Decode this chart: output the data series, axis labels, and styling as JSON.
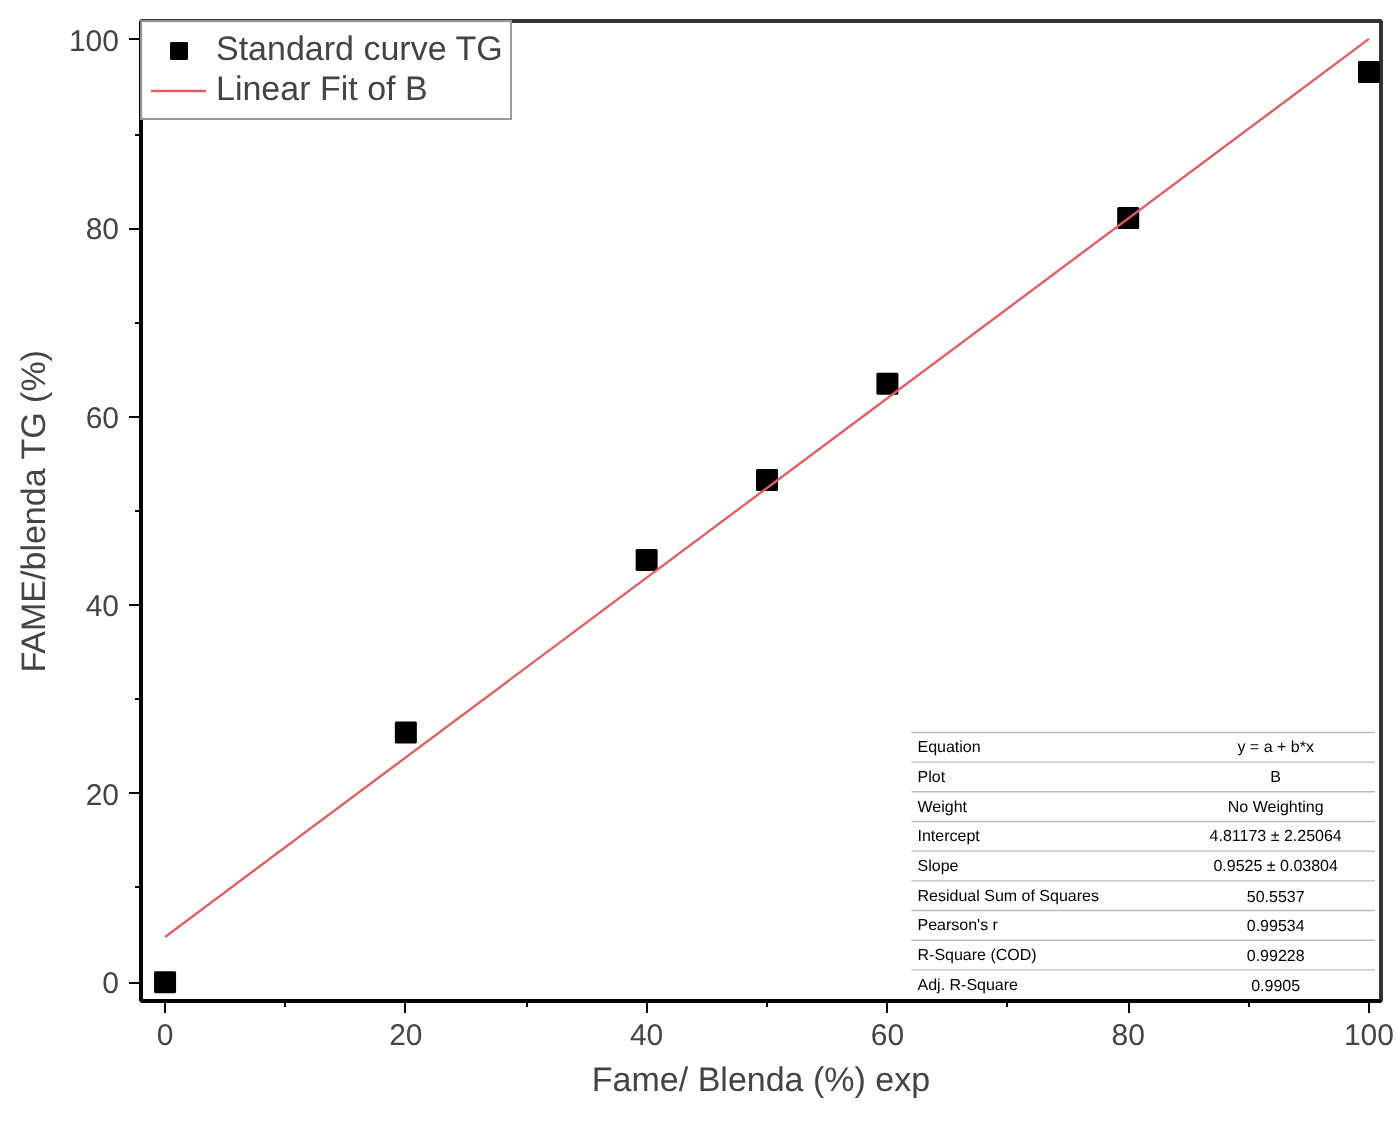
{
  "chart_data": {
    "type": "scatter",
    "xlabel": "Fame/ Blenda (%) exp",
    "ylabel": "FAME/blenda TG (%)",
    "xlim": [
      -2,
      101
    ],
    "ylim": [
      -2,
      102
    ],
    "xticks": [
      0,
      20,
      40,
      60,
      80,
      100
    ],
    "yticks": [
      0,
      20,
      40,
      60,
      80,
      100
    ],
    "grid": false,
    "legend": "top left",
    "series": [
      {
        "name": "Standard curve TG",
        "marker": "square",
        "color": "#000000",
        "x": [
          0,
          20,
          40,
          50,
          60,
          80,
          100
        ],
        "values": [
          0,
          26.5,
          44.8,
          53.3,
          63.5,
          81.1,
          96.6
        ]
      },
      {
        "name": "Linear Fit of B",
        "type": "line",
        "marker": "none",
        "color": "#e06060",
        "x": [
          0,
          100
        ],
        "values": [
          4.8,
          100.1
        ]
      }
    ],
    "annotations": [
      "Equation",
      "y = a + b*x",
      "Plot",
      "B",
      "Weight",
      "No Weighting",
      "Intercept",
      "4.81173 ± 2.25064",
      "Slope",
      "0.9525 ± 0.03804",
      "Residual Sum of Squares",
      "50.5537",
      "Pearson's r",
      "0.99534",
      "R-Square (COD)",
      "0.99228",
      "Adj. R-Square",
      "0.9905"
    ]
  }
}
